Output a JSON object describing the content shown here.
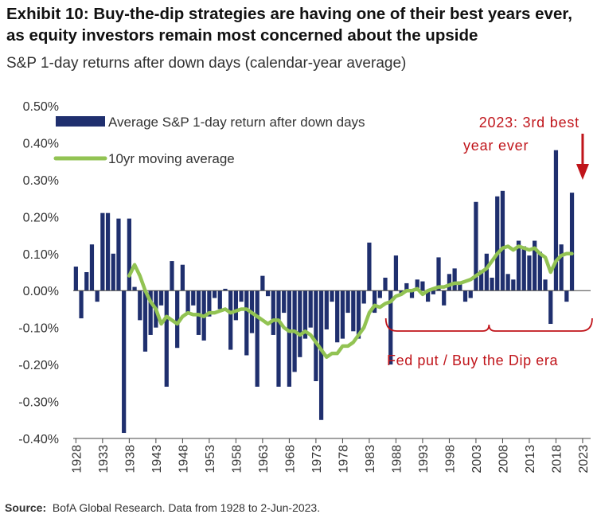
{
  "header": {
    "title": "Exhibit 10: Buy-the-dip strategies are having one of their best years ever, as equity investors remain most concerned about the upside",
    "subtitle": "S&P 1-day returns after down days (calendar-year average)"
  },
  "footer": {
    "source_label": "Source:",
    "source_text": "BofA Global Research. Data from 1928 to 2-Jun-2023."
  },
  "colors": {
    "bar": "#1f2f6e",
    "line": "#92c353",
    "annotation": "#c0141a",
    "axis": "#444444"
  },
  "chart_data": {
    "type": "bar+line",
    "title": "S&P 1-day returns after down days (calendar-year average)",
    "xlabel": "",
    "ylabel": "",
    "ylim": [
      -0.4,
      0.5
    ],
    "yticks": [
      0.5,
      0.4,
      0.3,
      0.2,
      0.1,
      0.0,
      -0.1,
      -0.2,
      -0.3,
      -0.4
    ],
    "ytick_labels": [
      "0.50%",
      "0.40%",
      "0.30%",
      "0.20%",
      "0.10%",
      "0.00%",
      "-0.10%",
      "-0.20%",
      "-0.30%",
      "-0.40%"
    ],
    "xtick_labels": [
      "1928",
      "1933",
      "1938",
      "1943",
      "1948",
      "1953",
      "1958",
      "1963",
      "1968",
      "1973",
      "1978",
      "1983",
      "1988",
      "1993",
      "1998",
      "2003",
      "2008",
      "2013",
      "2018",
      "2023"
    ],
    "x": [
      1928,
      1929,
      1930,
      1931,
      1932,
      1933,
      1934,
      1935,
      1936,
      1937,
      1938,
      1939,
      1940,
      1941,
      1942,
      1943,
      1944,
      1945,
      1946,
      1947,
      1948,
      1949,
      1950,
      1951,
      1952,
      1953,
      1954,
      1955,
      1956,
      1957,
      1958,
      1959,
      1960,
      1961,
      1962,
      1963,
      1964,
      1965,
      1966,
      1967,
      1968,
      1969,
      1970,
      1971,
      1972,
      1973,
      1974,
      1975,
      1976,
      1977,
      1978,
      1979,
      1980,
      1981,
      1982,
      1983,
      1984,
      1985,
      1986,
      1987,
      1988,
      1989,
      1990,
      1991,
      1992,
      1993,
      1994,
      1995,
      1996,
      1997,
      1998,
      1999,
      2000,
      2001,
      2002,
      2003,
      2004,
      2005,
      2006,
      2007,
      2008,
      2009,
      2010,
      2011,
      2012,
      2013,
      2014,
      2015,
      2016,
      2017,
      2018,
      2019,
      2020,
      2021,
      2022,
      2023
    ],
    "series": [
      {
        "name": "Average S&P 1-day return after down days",
        "type": "bar",
        "values": [
          0.065,
          -0.075,
          0.05,
          0.125,
          -0.03,
          0.21,
          0.21,
          0.1,
          0.195,
          -0.385,
          0.195,
          0.01,
          -0.08,
          -0.165,
          -0.12,
          -0.1,
          -0.04,
          -0.26,
          0.08,
          -0.155,
          0.07,
          -0.06,
          -0.04,
          -0.12,
          -0.135,
          -0.07,
          -0.02,
          -0.05,
          0.005,
          -0.16,
          -0.08,
          -0.03,
          -0.175,
          -0.115,
          -0.26,
          0.04,
          -0.015,
          -0.12,
          -0.26,
          -0.06,
          -0.26,
          -0.22,
          -0.18,
          -0.13,
          -0.1,
          -0.245,
          -0.35,
          -0.105,
          -0.03,
          -0.14,
          -0.13,
          -0.06,
          -0.11,
          -0.13,
          -0.035,
          0.13,
          -0.06,
          -0.02,
          0.035,
          -0.2,
          0.095,
          -0.01,
          0.02,
          -0.02,
          0.03,
          0.025,
          -0.03,
          -0.01,
          0.09,
          -0.04,
          0.045,
          0.06,
          0.025,
          -0.03,
          -0.02,
          0.24,
          0.055,
          0.1,
          0.035,
          0.255,
          0.27,
          0.045,
          0.03,
          0.135,
          0.12,
          0.095,
          0.135,
          0.105,
          0.03,
          -0.09,
          0.38,
          0.125,
          -0.03,
          0.265,
          null,
          null
        ]
      },
      {
        "name": "10yr moving average",
        "type": "line",
        "values": [
          null,
          null,
          null,
          null,
          null,
          null,
          null,
          null,
          null,
          null,
          0.04,
          0.07,
          0.04,
          0.0,
          -0.03,
          -0.05,
          -0.09,
          -0.07,
          -0.08,
          -0.09,
          -0.07,
          -0.06,
          -0.065,
          -0.065,
          -0.07,
          -0.06,
          -0.06,
          -0.055,
          -0.05,
          -0.06,
          -0.055,
          -0.05,
          -0.05,
          -0.06,
          -0.07,
          -0.08,
          -0.09,
          -0.08,
          -0.08,
          -0.1,
          -0.11,
          -0.11,
          -0.12,
          -0.11,
          -0.12,
          -0.14,
          -0.16,
          -0.18,
          -0.17,
          -0.17,
          -0.15,
          -0.15,
          -0.14,
          -0.12,
          -0.1,
          -0.06,
          -0.04,
          -0.045,
          -0.035,
          -0.03,
          -0.015,
          -0.01,
          0.0,
          0.0,
          0.005,
          -0.01,
          0.0,
          0.005,
          0.01,
          0.01,
          0.015,
          0.02,
          0.02,
          0.025,
          0.03,
          0.04,
          0.05,
          0.06,
          0.08,
          0.1,
          0.115,
          0.12,
          0.11,
          0.12,
          0.115,
          0.11,
          0.115,
          0.1,
          0.09,
          0.05,
          0.08,
          0.095,
          0.1,
          0.1,
          null,
          null
        ]
      }
    ],
    "legend": {
      "position": "top-left",
      "entries": [
        "Average S&P 1-day return after down days",
        "10yr moving average"
      ]
    },
    "annotations": [
      {
        "text": "2023: 3rd best year ever",
        "points_to_year": 2023
      },
      {
        "text": "Fed put / Buy the Dip era",
        "span_from_year": 1987,
        "span_to_year": 2023
      }
    ]
  }
}
